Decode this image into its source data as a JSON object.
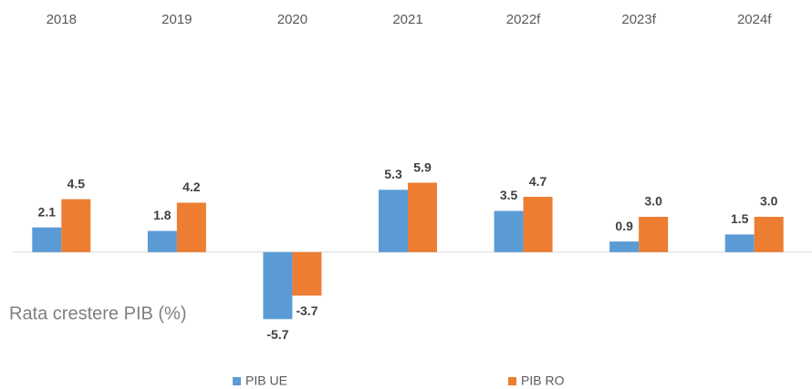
{
  "chart_data": {
    "type": "bar",
    "title": "Rata crestere PIB (%)",
    "categories": [
      "2018",
      "2019",
      "2020",
      "2021",
      "2022f",
      "2023f",
      "2024f"
    ],
    "series": [
      {
        "name": "PIB UE",
        "color": "#5b9bd5",
        "values": [
          2.1,
          1.8,
          -5.7,
          5.3,
          3.5,
          0.9,
          1.5
        ],
        "value_labels": [
          "2.1",
          "1.8",
          "-5.7",
          "5.3",
          "3.5",
          "0.9",
          "1.5"
        ]
      },
      {
        "name": "PIB RO",
        "color": "#ed7d31",
        "values": [
          4.5,
          4.2,
          -3.7,
          5.9,
          4.7,
          3.0,
          3.0
        ],
        "value_labels": [
          "4.5",
          "4.2",
          "-3.7",
          "5.9",
          "4.7",
          "3.0",
          "3.0"
        ]
      }
    ],
    "ylim": [
      -8,
      14
    ],
    "legend": "bottom"
  }
}
